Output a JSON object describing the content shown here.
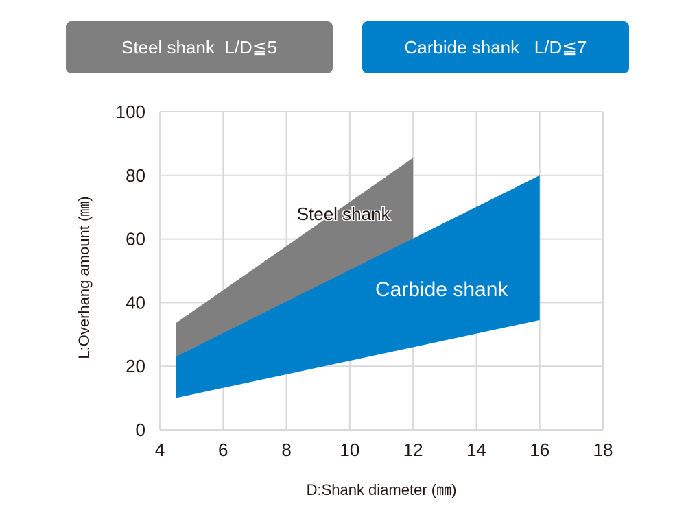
{
  "legend_badges": [
    {
      "label": "Steel shank  L/D≦5",
      "color": "#7f7f7f"
    },
    {
      "label": "Carbide shank   L/D≦7",
      "color": "#0080cb"
    }
  ],
  "chart_data": {
    "type": "area",
    "xlabel": "D:Shank diameter (㎜)",
    "ylabel": "L:Overhang amount (㎜)",
    "xlim": [
      4,
      18
    ],
    "ylim": [
      0,
      100
    ],
    "xticks": [
      4,
      6,
      8,
      10,
      12,
      14,
      16,
      18
    ],
    "yticks": [
      0,
      20,
      40,
      60,
      80,
      100
    ],
    "grid": true,
    "series": [
      {
        "name": "Steel shank",
        "color": "#7f7f7f",
        "upper": [
          [
            4.5,
            33.5
          ],
          [
            12,
            85.5
          ]
        ],
        "lower": [
          [
            4.5,
            23
          ],
          [
            12,
            60
          ]
        ]
      },
      {
        "name": "Carbide shank",
        "color": "#0080cb",
        "upper": [
          [
            4.5,
            23
          ],
          [
            16,
            80
          ]
        ],
        "lower": [
          [
            4.5,
            10
          ],
          [
            16,
            34.5
          ]
        ]
      }
    ],
    "annotations": [
      {
        "text": "Steel shank",
        "x": 9.8,
        "y": 66
      },
      {
        "text": "Carbide shank",
        "x": 12.9,
        "y": 42
      }
    ]
  }
}
